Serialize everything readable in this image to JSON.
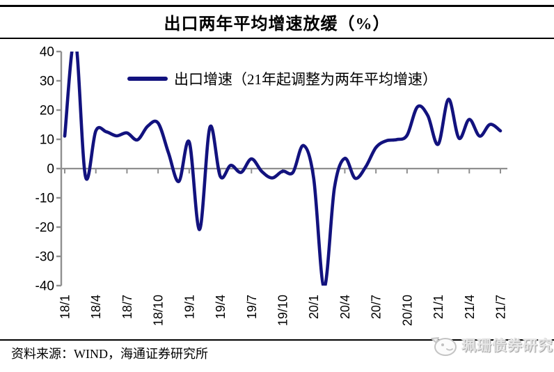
{
  "title": "出口两年平均增速放缓（%）",
  "legend": {
    "label": "出口增速（21年起调整为两年平均增速）",
    "line_color": "#12127E"
  },
  "footer": {
    "source": "资料来源：WIND，海通证券研究所"
  },
  "watermark": {
    "label": "珮珊债券研究"
  },
  "colors": {
    "line_navy": "#12127E",
    "axis_gray": "#8F8F8F",
    "rule_black": "#000000",
    "text_black": "#000000",
    "watermark_gray": "#C9C9C9"
  },
  "chart_data": {
    "type": "line",
    "title": "出口两年平均增速放缓（%）",
    "xlabel": "",
    "ylabel": "",
    "ylim": [
      -40,
      40
    ],
    "ytick_interval": 10,
    "yticks": [
      40,
      30,
      20,
      10,
      0,
      -10,
      -20,
      -30,
      -40
    ],
    "grid": false,
    "smooth": true,
    "clip_to_ylim": true,
    "zero_axis": true,
    "legend_position": "top-center",
    "x_tick_every": 3,
    "x_tick_labels": [
      "18/1",
      "18/4",
      "18/7",
      "18/10",
      "19/1",
      "19/4",
      "19/7",
      "19/10",
      "20/1",
      "20/4",
      "20/7",
      "20/10",
      "21/1",
      "21/4",
      "21/7"
    ],
    "categories": [
      "18/1",
      "18/2",
      "18/3",
      "18/4",
      "18/5",
      "18/6",
      "18/7",
      "18/8",
      "18/9",
      "18/10",
      "18/11",
      "18/12",
      "19/1",
      "19/2",
      "19/3",
      "19/4",
      "19/5",
      "19/6",
      "19/7",
      "19/8",
      "19/9",
      "19/10",
      "19/11",
      "19/12",
      "20/1",
      "20/2",
      "20/3",
      "20/4",
      "20/5",
      "20/6",
      "20/7",
      "20/8",
      "20/9",
      "20/10",
      "20/11",
      "20/12",
      "21/1",
      "21/2",
      "21/3",
      "21/4",
      "21/5",
      "21/6",
      "21/7"
    ],
    "series": [
      {
        "name": "出口增速（21年起调整为两年平均增速）",
        "color": "#12127E",
        "values": [
          11.1,
          44.5,
          -2.7,
          12.9,
          12.6,
          11.2,
          12.2,
          9.8,
          14.5,
          15.6,
          5.4,
          -4.4,
          9.1,
          -20.8,
          14.2,
          -2.7,
          1.1,
          -1.3,
          3.3,
          -1.0,
          -3.2,
          -0.9,
          -1.3,
          7.9,
          -3.3,
          -40.6,
          -6.6,
          3.5,
          -3.3,
          0.5,
          7.2,
          9.5,
          9.9,
          11.4,
          21.1,
          18.1,
          8.3,
          23.7,
          10.4,
          16.8,
          11.1,
          15.1,
          12.9
        ]
      }
    ]
  }
}
